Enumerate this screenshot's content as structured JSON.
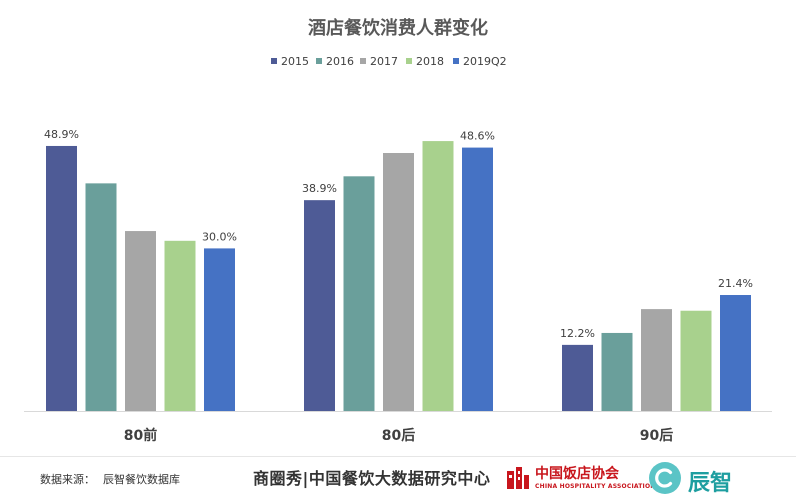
{
  "chart_data": {
    "type": "bar",
    "title": "酒店餐饮消费人群变化",
    "categories": [
      "80前",
      "80后",
      "90后"
    ],
    "series": [
      {
        "name": "2015",
        "color": "#4e5b96",
        "values": [
          48.9,
          38.9,
          12.2
        ]
      },
      {
        "name": "2016",
        "color": "#6a9f9b",
        "values": [
          42.0,
          43.3,
          14.4
        ]
      },
      {
        "name": "2017",
        "color": "#a6a6a6",
        "values": [
          33.2,
          47.6,
          18.8
        ]
      },
      {
        "name": "2018",
        "color": "#a8d18d",
        "values": [
          31.4,
          49.8,
          18.5
        ]
      },
      {
        "name": "2019Q2",
        "color": "#4572c4",
        "values": [
          30.0,
          48.6,
          21.4
        ]
      }
    ],
    "data_labels": [
      {
        "series": 0,
        "category": 0,
        "text": "48.9%"
      },
      {
        "series": 4,
        "category": 0,
        "text": "30.0%"
      },
      {
        "series": 0,
        "category": 1,
        "text": "38.9%"
      },
      {
        "series": 4,
        "category": 1,
        "text": "48.6%"
      },
      {
        "series": 0,
        "category": 2,
        "text": "12.2%"
      },
      {
        "series": 4,
        "category": 2,
        "text": "21.4%"
      }
    ],
    "ylim": [
      0,
      55
    ],
    "grid": false,
    "legend_position": "top"
  },
  "footer": {
    "source_label": "数据来源：",
    "source_value": "辰智餐饮数据库",
    "brand_text": "商圈秀|中国餐饮大数据研究中心",
    "association_name": "中国饭店协会",
    "association_en": "CHINA HOSPITALITY ASSOCIATION",
    "company_name": "辰智"
  }
}
